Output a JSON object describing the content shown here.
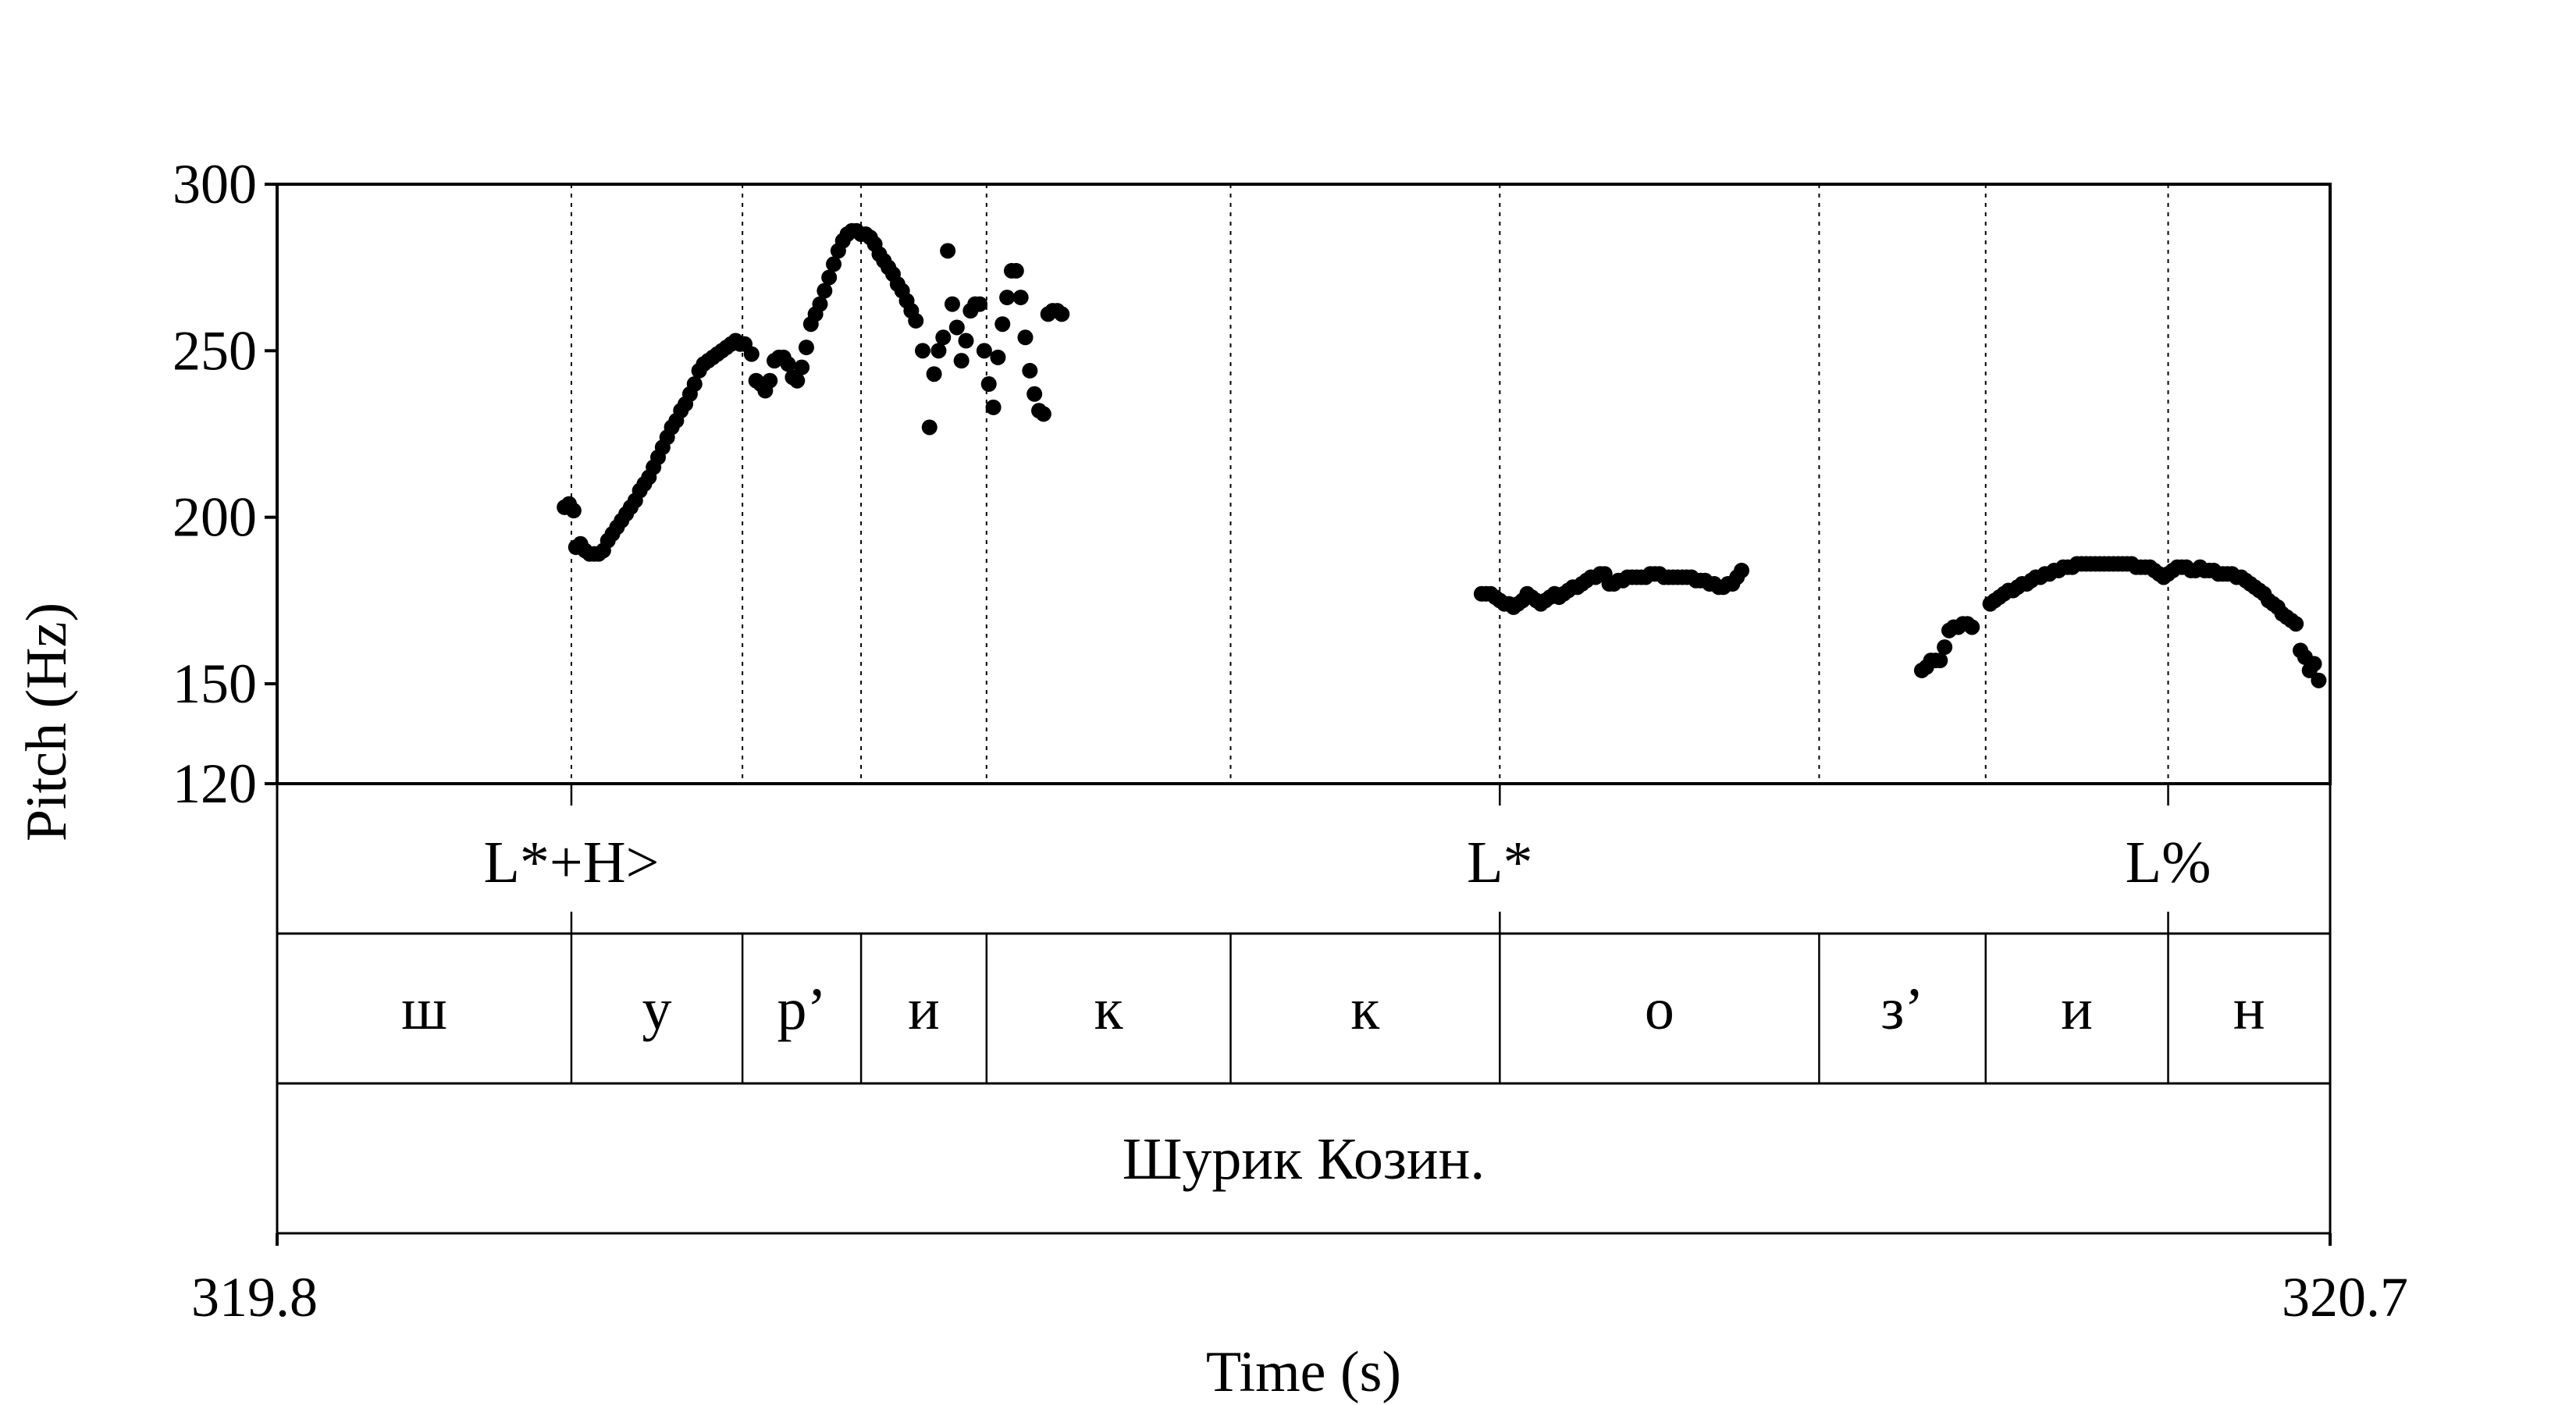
{
  "chart_data": {
    "type": "scatter",
    "xlabel": "Time (s)",
    "ylabel": "Pitch (Hz)",
    "xlim": [
      319.8,
      320.7
    ],
    "ylim": [
      120,
      300
    ],
    "x_tick_labels": [
      "319.8",
      "320.7"
    ],
    "y_ticks": [
      120,
      150,
      200,
      250,
      300
    ],
    "y_tick_labels": [
      "120",
      "150",
      "200",
      "250",
      "300"
    ],
    "grid": false,
    "boundaries": [
      319.929,
      320.004,
      320.056,
      320.111,
      320.218,
      320.336,
      320.476,
      320.549,
      320.629
    ],
    "tones": [
      {
        "label": "L*+H>",
        "time": 319.929
      },
      {
        "label": "L*",
        "time": 320.336
      },
      {
        "label": "L%",
        "time": 320.629
      }
    ],
    "segments": [
      {
        "label": "ш",
        "start": 319.8,
        "end": 319.929
      },
      {
        "label": "у",
        "start": 319.929,
        "end": 320.004
      },
      {
        "label": "р’",
        "start": 320.004,
        "end": 320.056
      },
      {
        "label": "и",
        "start": 320.056,
        "end": 320.111
      },
      {
        "label": "к",
        "start": 320.111,
        "end": 320.218
      },
      {
        "label": "к",
        "start": 320.218,
        "end": 320.336
      },
      {
        "label": "о",
        "start": 320.336,
        "end": 320.476
      },
      {
        "label": "з’",
        "start": 320.476,
        "end": 320.549
      },
      {
        "label": "и",
        "start": 320.549,
        "end": 320.629
      },
      {
        "label": "н",
        "start": 320.629,
        "end": 320.7
      }
    ],
    "sentence": "Шурик Козин.",
    "series": [
      {
        "points": [
          [
            319.926,
            203
          ],
          [
            319.928,
            204
          ],
          [
            319.93,
            202
          ],
          [
            319.931,
            191
          ],
          [
            319.933,
            192
          ],
          [
            319.935,
            190
          ],
          [
            319.937,
            189
          ],
          [
            319.939,
            189
          ],
          [
            319.941,
            189
          ],
          [
            319.943,
            190
          ],
          [
            319.945,
            193
          ],
          [
            319.947,
            195
          ],
          [
            319.949,
            197
          ],
          [
            319.951,
            199
          ],
          [
            319.953,
            201
          ],
          [
            319.955,
            203
          ],
          [
            319.957,
            205
          ],
          [
            319.959,
            208
          ],
          [
            319.961,
            210
          ],
          [
            319.963,
            212
          ],
          [
            319.965,
            215
          ],
          [
            319.967,
            218
          ],
          [
            319.969,
            221
          ],
          [
            319.971,
            224
          ],
          [
            319.973,
            227
          ],
          [
            319.975,
            229
          ],
          [
            319.977,
            232
          ],
          [
            319.979,
            234
          ],
          [
            319.981,
            237
          ],
          [
            319.983,
            240
          ],
          [
            319.985,
            244
          ],
          [
            319.987,
            246
          ],
          [
            319.989,
            247
          ],
          [
            319.991,
            248
          ],
          [
            319.993,
            249
          ],
          [
            319.995,
            250
          ],
          [
            319.997,
            251
          ],
          [
            319.999,
            252
          ],
          [
            320.001,
            253
          ],
          [
            320.003,
            252
          ],
          [
            320.005,
            252
          ],
          [
            320.008,
            249
          ],
          [
            320.01,
            241
          ],
          [
            320.012,
            240
          ],
          [
            320.014,
            238
          ],
          [
            320.016,
            241
          ],
          [
            320.018,
            247
          ],
          [
            320.02,
            248
          ],
          [
            320.022,
            248
          ],
          [
            320.024,
            246
          ],
          [
            320.026,
            242
          ],
          [
            320.028,
            241
          ],
          [
            320.03,
            245
          ],
          [
            320.032,
            251
          ],
          [
            320.034,
            258
          ],
          [
            320.036,
            261
          ],
          [
            320.038,
            264
          ],
          [
            320.04,
            268
          ],
          [
            320.042,
            272
          ],
          [
            320.044,
            276
          ],
          [
            320.046,
            280
          ],
          [
            320.048,
            283
          ],
          [
            320.05,
            285
          ],
          [
            320.052,
            286
          ],
          [
            320.054,
            286
          ],
          [
            320.056,
            285
          ],
          [
            320.058,
            285
          ],
          [
            320.06,
            284
          ],
          [
            320.062,
            282
          ],
          [
            320.064,
            279
          ],
          [
            320.066,
            277
          ],
          [
            320.068,
            275
          ],
          [
            320.07,
            273
          ],
          [
            320.072,
            270
          ],
          [
            320.074,
            268
          ],
          [
            320.076,
            265
          ],
          [
            320.078,
            262
          ],
          [
            320.08,
            259
          ],
          [
            320.083,
            250
          ],
          [
            320.086,
            227
          ],
          [
            320.088,
            243
          ],
          [
            320.09,
            250
          ],
          [
            320.092,
            254
          ],
          [
            320.094,
            280
          ],
          [
            320.096,
            264
          ],
          [
            320.098,
            257
          ],
          [
            320.1,
            247
          ],
          [
            320.102,
            253
          ],
          [
            320.104,
            262
          ],
          [
            320.106,
            264
          ],
          [
            320.108,
            264
          ],
          [
            320.11,
            250
          ],
          [
            320.112,
            240
          ],
          [
            320.114,
            233
          ],
          [
            320.116,
            248
          ],
          [
            320.118,
            258
          ],
          [
            320.12,
            266
          ],
          [
            320.122,
            274
          ],
          [
            320.124,
            274
          ],
          [
            320.126,
            266
          ],
          [
            320.128,
            254
          ],
          [
            320.13,
            244
          ],
          [
            320.132,
            237
          ],
          [
            320.134,
            232
          ],
          [
            320.136,
            231
          ],
          [
            320.138,
            261
          ],
          [
            320.14,
            262
          ],
          [
            320.142,
            262
          ],
          [
            320.144,
            261
          ],
          [
            320.328,
            177
          ],
          [
            320.33,
            177
          ],
          [
            320.332,
            177
          ],
          [
            320.334,
            176
          ],
          [
            320.336,
            175
          ],
          [
            320.338,
            174
          ],
          [
            320.34,
            174
          ],
          [
            320.342,
            173
          ],
          [
            320.344,
            174
          ],
          [
            320.346,
            175
          ],
          [
            320.348,
            177
          ],
          [
            320.35,
            176
          ],
          [
            320.352,
            175
          ],
          [
            320.354,
            174
          ],
          [
            320.356,
            175
          ],
          [
            320.358,
            176
          ],
          [
            320.36,
            177
          ],
          [
            320.362,
            176
          ],
          [
            320.364,
            177
          ],
          [
            320.366,
            178
          ],
          [
            320.368,
            179
          ],
          [
            320.37,
            179
          ],
          [
            320.372,
            180
          ],
          [
            320.374,
            181
          ],
          [
            320.376,
            182
          ],
          [
            320.378,
            182
          ],
          [
            320.38,
            183
          ],
          [
            320.382,
            183
          ],
          [
            320.384,
            180
          ],
          [
            320.386,
            180
          ],
          [
            320.388,
            181
          ],
          [
            320.39,
            181
          ],
          [
            320.392,
            182
          ],
          [
            320.394,
            182
          ],
          [
            320.396,
            182
          ],
          [
            320.398,
            182
          ],
          [
            320.4,
            182
          ],
          [
            320.402,
            183
          ],
          [
            320.404,
            183
          ],
          [
            320.406,
            183
          ],
          [
            320.408,
            182
          ],
          [
            320.41,
            182
          ],
          [
            320.412,
            182
          ],
          [
            320.414,
            182
          ],
          [
            320.416,
            182
          ],
          [
            320.418,
            182
          ],
          [
            320.42,
            182
          ],
          [
            320.422,
            181
          ],
          [
            320.424,
            181
          ],
          [
            320.426,
            181
          ],
          [
            320.428,
            180
          ],
          [
            320.43,
            180
          ],
          [
            320.432,
            179
          ],
          [
            320.434,
            179
          ],
          [
            320.436,
            180
          ],
          [
            320.438,
            180
          ],
          [
            320.44,
            182
          ],
          [
            320.442,
            184
          ],
          [
            320.521,
            154
          ],
          [
            320.523,
            155
          ],
          [
            320.525,
            157
          ],
          [
            320.527,
            157
          ],
          [
            320.529,
            157
          ],
          [
            320.531,
            161
          ],
          [
            320.533,
            166
          ],
          [
            320.535,
            167
          ],
          [
            320.537,
            167
          ],
          [
            320.539,
            168
          ],
          [
            320.541,
            168
          ],
          [
            320.543,
            167
          ],
          [
            320.551,
            174
          ],
          [
            320.553,
            175
          ],
          [
            320.555,
            176
          ],
          [
            320.557,
            177
          ],
          [
            320.559,
            178
          ],
          [
            320.561,
            178
          ],
          [
            320.563,
            179
          ],
          [
            320.565,
            180
          ],
          [
            320.567,
            180
          ],
          [
            320.569,
            181
          ],
          [
            320.571,
            182
          ],
          [
            320.573,
            182
          ],
          [
            320.575,
            183
          ],
          [
            320.577,
            183
          ],
          [
            320.579,
            184
          ],
          [
            320.581,
            184
          ],
          [
            320.583,
            185
          ],
          [
            320.585,
            185
          ],
          [
            320.587,
            185
          ],
          [
            320.589,
            186
          ],
          [
            320.591,
            186
          ],
          [
            320.593,
            186
          ],
          [
            320.595,
            186
          ],
          [
            320.597,
            186
          ],
          [
            320.599,
            186
          ],
          [
            320.601,
            186
          ],
          [
            320.603,
            186
          ],
          [
            320.605,
            186
          ],
          [
            320.607,
            186
          ],
          [
            320.609,
            186
          ],
          [
            320.611,
            186
          ],
          [
            320.613,
            186
          ],
          [
            320.615,
            185
          ],
          [
            320.617,
            185
          ],
          [
            320.619,
            185
          ],
          [
            320.621,
            185
          ],
          [
            320.623,
            184
          ],
          [
            320.625,
            183
          ],
          [
            320.627,
            182
          ],
          [
            320.629,
            183
          ],
          [
            320.631,
            184
          ],
          [
            320.633,
            185
          ],
          [
            320.635,
            185
          ],
          [
            320.637,
            185
          ],
          [
            320.639,
            184
          ],
          [
            320.641,
            184
          ],
          [
            320.643,
            185
          ],
          [
            320.645,
            184
          ],
          [
            320.647,
            184
          ],
          [
            320.649,
            184
          ],
          [
            320.651,
            183
          ],
          [
            320.653,
            183
          ],
          [
            320.655,
            183
          ],
          [
            320.657,
            183
          ],
          [
            320.659,
            182
          ],
          [
            320.661,
            182
          ],
          [
            320.663,
            181
          ],
          [
            320.665,
            180
          ],
          [
            320.667,
            179
          ],
          [
            320.669,
            178
          ],
          [
            320.671,
            177
          ],
          [
            320.673,
            175
          ],
          [
            320.675,
            174
          ],
          [
            320.677,
            173
          ],
          [
            320.679,
            171
          ],
          [
            320.681,
            170
          ],
          [
            320.683,
            169
          ],
          [
            320.685,
            168
          ],
          [
            320.687,
            160
          ],
          [
            320.689,
            158
          ],
          [
            320.691,
            154
          ],
          [
            320.693,
            156
          ],
          [
            320.695,
            151
          ]
        ]
      }
    ]
  }
}
